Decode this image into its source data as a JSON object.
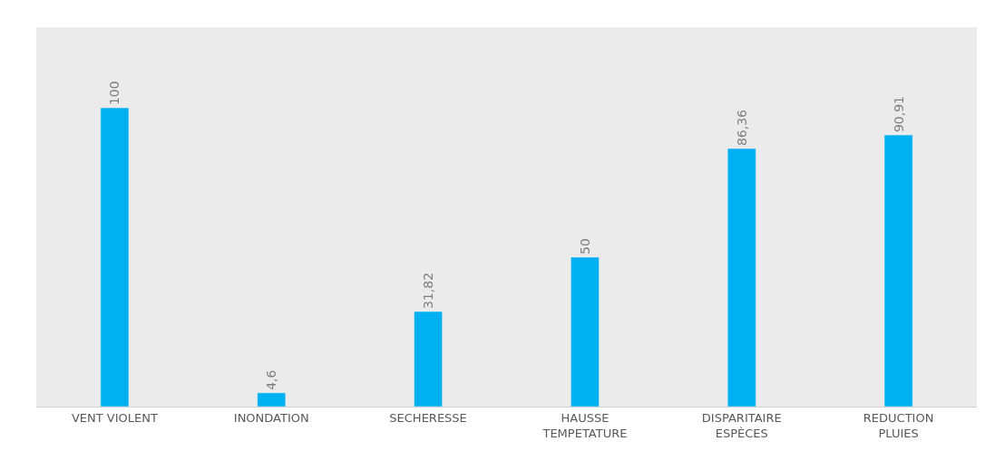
{
  "chart_data": {
    "type": "bar",
    "categories": [
      "VENT VIOLENT",
      "INONDATION",
      "SECHERESSE",
      "HAUSSE TEMPETATURE",
      "DISPARITAIRE ESPÈCES",
      "REDUCTION PLUIES"
    ],
    "values": [
      100,
      4.6,
      31.82,
      50,
      86.36,
      90.91
    ],
    "value_labels": [
      "100",
      "4,6",
      "31,82",
      "50",
      "86,36",
      "90,91"
    ],
    "color": "#00b0f0",
    "ylim": [
      0,
      127
    ],
    "tick_labels": "x",
    "grid": false
  }
}
